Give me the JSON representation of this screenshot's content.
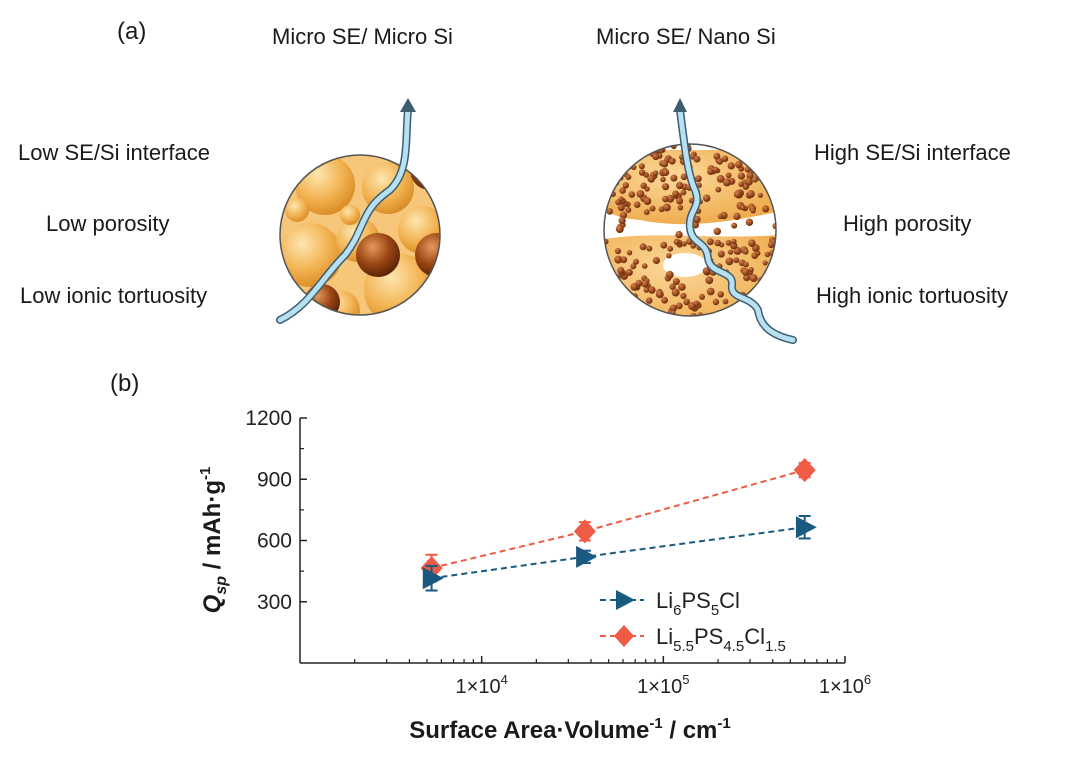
{
  "panel_a": {
    "tag": "(a)",
    "left": {
      "title": "Micro SE/ Micro Si",
      "props": [
        "Low SE/Si interface",
        "Low porosity",
        "Low ionic tortuosity"
      ]
    },
    "right": {
      "title": "Micro SE/ Nano Si",
      "props": [
        "High SE/Si interface",
        "High porosity",
        "High ionic tortuosity"
      ]
    },
    "colors": {
      "se": "#f2b250",
      "si": "#9b4614",
      "path": "#8cc3e0",
      "path_edge": "#3d5e6e"
    }
  },
  "panel_b": {
    "tag": "(b)"
  },
  "chart_data": {
    "type": "scatter",
    "x_scale": "log",
    "xlim": [
      1000,
      1000000
    ],
    "ylim": [
      0,
      1200
    ],
    "yticks": [
      300,
      600,
      900,
      1200
    ],
    "xticks": [
      10000,
      100000,
      1000000
    ],
    "xtick_labels": [
      "1×10",
      "1×10",
      "1×10"
    ],
    "xtick_exponents": [
      "4",
      "5",
      "6"
    ],
    "ytick_labels": [
      "300",
      "600",
      "900",
      "1200"
    ],
    "xlabel": {
      "main": "Surface Area·Volume",
      "sup": "-1",
      "tail": " / cm",
      "sup2": "-1"
    },
    "ylabel": {
      "q": "Q",
      "sub": "sp",
      "tail": " / mAh·g",
      "sup": "-1"
    },
    "legend_position": "bottom-right",
    "series": [
      {
        "name_parts": [
          "Li",
          "6",
          "PS",
          "5",
          "Cl"
        ],
        "color": "#1b5a80",
        "marker": "triangle-right",
        "line": "dashed",
        "x": [
          5300,
          37000,
          600000
        ],
        "y": [
          415,
          520,
          665
        ],
        "err": [
          60,
          30,
          55
        ]
      },
      {
        "name_parts": [
          "Li",
          "5.5",
          "PS",
          "4.5",
          "Cl",
          "1.5"
        ],
        "color": "#ef5b45",
        "marker": "diamond",
        "line": "dashed",
        "x": [
          5300,
          37000,
          600000
        ],
        "y": [
          465,
          645,
          945
        ],
        "err": [
          65,
          45,
          35
        ]
      }
    ]
  }
}
